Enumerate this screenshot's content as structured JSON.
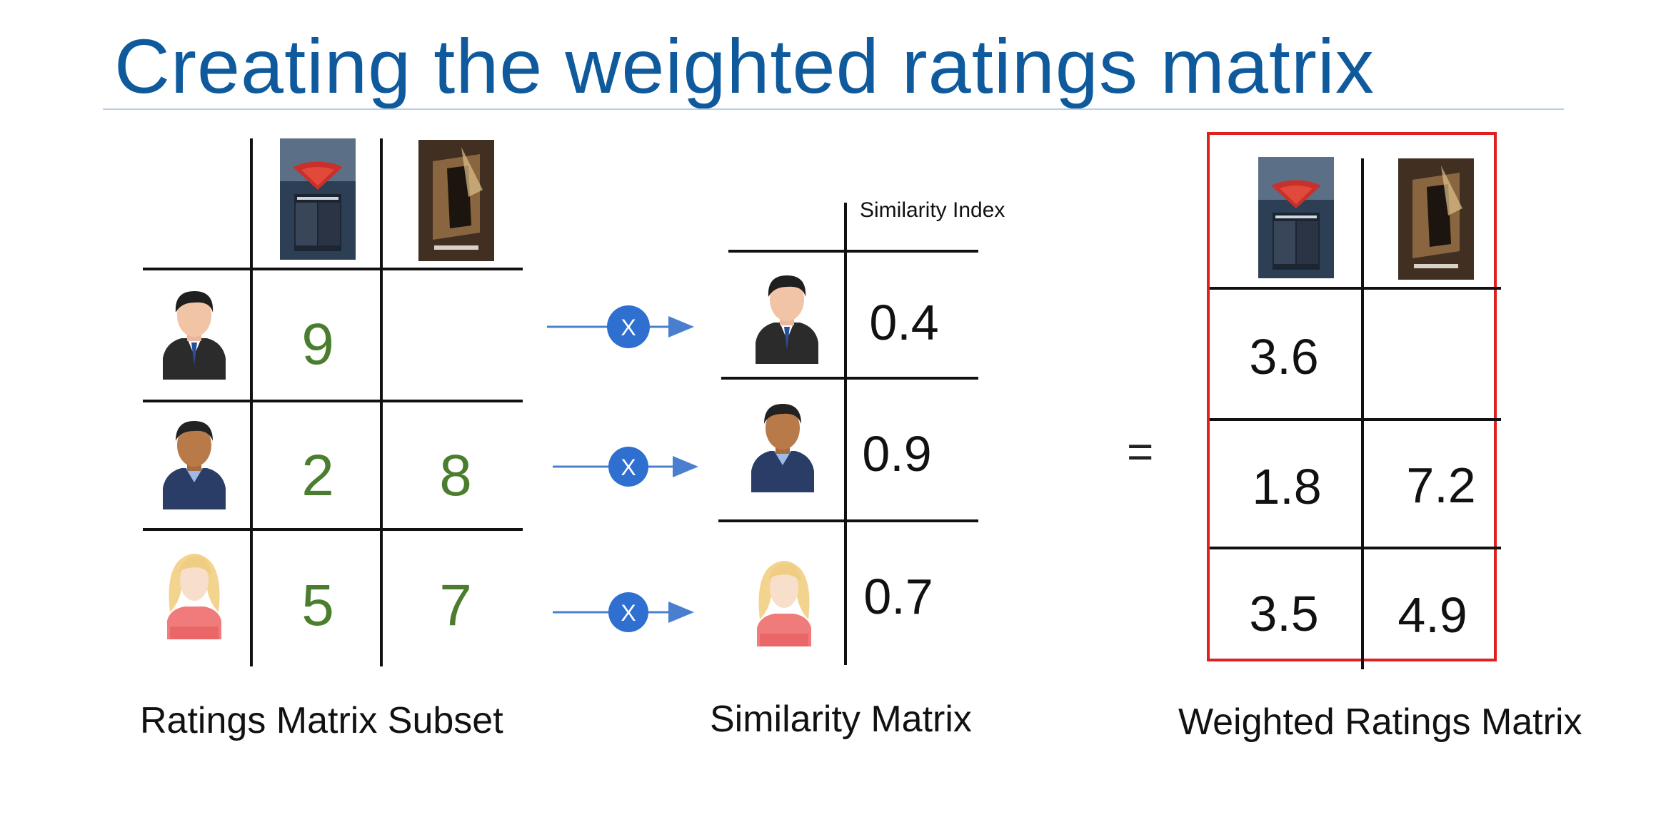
{
  "title": "Creating the weighted ratings matrix",
  "movies": [
    {
      "name": "batman-v-superman-poster"
    },
    {
      "name": "batman-begins-poster"
    }
  ],
  "ratings_matrix": {
    "caption": "Ratings Matrix Subset",
    "rows": [
      {
        "user": "man-suit-icon",
        "values": [
          "9",
          ""
        ]
      },
      {
        "user": "man-sweater-icon",
        "values": [
          "2",
          "8"
        ]
      },
      {
        "user": "woman-blonde-icon",
        "values": [
          "5",
          "7"
        ]
      }
    ]
  },
  "operator_symbol": "X",
  "similarity_matrix": {
    "caption": "Similarity Matrix",
    "header": "Similarity Index",
    "rows": [
      {
        "user": "man-suit-icon",
        "value": "0.4"
      },
      {
        "user": "man-sweater-icon",
        "value": "0.9"
      },
      {
        "user": "woman-blonde-icon",
        "value": "0.7"
      }
    ]
  },
  "equals": "=",
  "weighted_matrix": {
    "caption": "Weighted Ratings Matrix",
    "rows": [
      [
        "3.6",
        ""
      ],
      [
        "1.8",
        "7.2"
      ],
      [
        "3.5",
        "4.9"
      ]
    ]
  },
  "colors": {
    "title": "#0f5a9c",
    "ratings": "#4b7d2f",
    "operator_circle": "#2e6fd0",
    "arrow": "#4a7fd0",
    "highlight_box": "#e0201f"
  }
}
